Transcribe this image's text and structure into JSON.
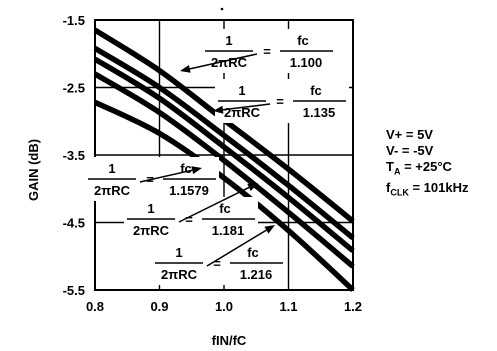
{
  "chart_data": {
    "type": "line",
    "xlabel": "fIN/fC",
    "ylabel": "GAIN (dB)",
    "xlim": [
      0.8,
      1.2
    ],
    "ylim": [
      -5.5,
      -1.5
    ],
    "x_ticks": [
      "0.8",
      "0.9",
      "1.0",
      "1.1",
      "1.2"
    ],
    "y_ticks": [
      "-1.5",
      "-2.5",
      "-3.5",
      "-4.5",
      "-5.5"
    ],
    "grid": true,
    "series": [
      {
        "label_num": "1",
        "label_den": "2πRC",
        "label_eq": "=",
        "label_fc": "fc",
        "label_val": "1.100",
        "x": [
          0.8,
          0.9,
          1.0,
          1.1,
          1.2
        ],
        "y": [
          -1.65,
          -2.25,
          -2.98,
          -3.71,
          -4.48
        ]
      },
      {
        "label_num": "1",
        "label_den": "2πRC",
        "label_eq": "=",
        "label_fc": "fc",
        "label_val": "1.135",
        "x": [
          0.8,
          0.9,
          1.0,
          1.1,
          1.2
        ],
        "y": [
          -1.92,
          -2.5,
          -3.21,
          -3.95,
          -4.73
        ]
      },
      {
        "label_num": "1",
        "label_den": "2πRC",
        "label_eq": "=",
        "label_fc": "fc",
        "label_val": "1.1579",
        "x": [
          0.8,
          0.9,
          1.0,
          1.1,
          1.2
        ],
        "y": [
          -2.08,
          -2.66,
          -3.38,
          -4.13,
          -4.92
        ]
      },
      {
        "label_num": "1",
        "label_den": "2πRC",
        "label_eq": "=",
        "label_fc": "fc",
        "label_val": "1.181",
        "x": [
          0.8,
          0.9,
          1.0,
          1.1,
          1.2
        ],
        "y": [
          -2.3,
          -2.87,
          -3.58,
          -4.35,
          -5.15
        ]
      },
      {
        "label_num": "1",
        "label_den": "2πRC",
        "label_eq": "=",
        "label_fc": "fc",
        "label_val": "1.216",
        "x": [
          0.8,
          0.9,
          1.0,
          1.1,
          1.2
        ],
        "y": [
          -2.72,
          -3.18,
          -3.84,
          -4.62,
          -5.5
        ]
      }
    ]
  },
  "conditions": {
    "vplus": "V+ = 5V",
    "vminus": "V- = -5V",
    "ta_main": "T",
    "ta_sub": "A",
    "ta_rest": " = +25°C",
    "fclk_main": "f",
    "fclk_sub": "CLK",
    "fclk_rest": " = 101kHz"
  }
}
